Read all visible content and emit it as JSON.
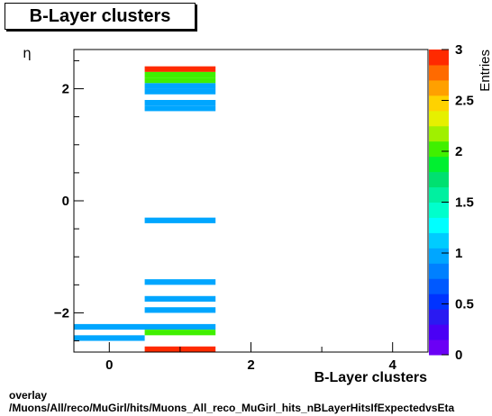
{
  "title": "B-Layer clusters",
  "footer": {
    "line1": "overlay",
    "line2": "/Muons/All/reco/MuGirl/hits/Muons_All_reco_MuGirl_hits_nBLayerHitsIfExpectedvsEta"
  },
  "chart_data": {
    "type": "heatmap",
    "title": "B-Layer clusters",
    "xlabel": "B-Layer clusters",
    "ylabel": "η",
    "zlabel": "Entries",
    "xlim": [
      -0.5,
      4.5
    ],
    "ylim": [
      -2.7,
      2.7
    ],
    "zlim": [
      0,
      3
    ],
    "x_ticks": [
      "0",
      "2",
      "4"
    ],
    "y_ticks": [
      "−2",
      "0",
      "2"
    ],
    "z_ticks": [
      "0",
      "0.5",
      "1",
      "1.5",
      "2",
      "2.5",
      "3"
    ],
    "cells": [
      {
        "x": [
          0.5,
          1.5
        ],
        "y": [
          2.3,
          2.4
        ],
        "value": 3
      },
      {
        "x": [
          0.5,
          1.5
        ],
        "y": [
          2.2,
          2.3
        ],
        "value": 2
      },
      {
        "x": [
          0.5,
          1.5
        ],
        "y": [
          2.1,
          2.2
        ],
        "value": 2
      },
      {
        "x": [
          0.5,
          1.5
        ],
        "y": [
          2.0,
          2.1
        ],
        "value": 1
      },
      {
        "x": [
          0.5,
          1.5
        ],
        "y": [
          1.9,
          2.0
        ],
        "value": 1
      },
      {
        "x": [
          0.5,
          1.5
        ],
        "y": [
          1.7,
          1.8
        ],
        "value": 1
      },
      {
        "x": [
          0.5,
          1.5
        ],
        "y": [
          1.6,
          1.7
        ],
        "value": 1
      },
      {
        "x": [
          0.5,
          1.5
        ],
        "y": [
          -0.4,
          -0.3
        ],
        "value": 1
      },
      {
        "x": [
          0.5,
          1.5
        ],
        "y": [
          -1.5,
          -1.4
        ],
        "value": 1
      },
      {
        "x": [
          0.5,
          1.5
        ],
        "y": [
          -1.8,
          -1.7
        ],
        "value": 1
      },
      {
        "x": [
          0.5,
          1.5
        ],
        "y": [
          -2.0,
          -1.9
        ],
        "value": 1
      },
      {
        "x": [
          -0.5,
          1.5
        ],
        "y": [
          -2.3,
          -2.2
        ],
        "value": 1
      },
      {
        "x": [
          0.5,
          1.5
        ],
        "y": [
          -2.4,
          -2.3
        ],
        "value": 2
      },
      {
        "x": [
          -0.5,
          0.5
        ],
        "y": [
          -2.5,
          -2.4
        ],
        "value": 1
      },
      {
        "x": [
          0.5,
          1.5
        ],
        "y": [
          -2.7,
          -2.6
        ],
        "value": 3
      }
    ]
  }
}
